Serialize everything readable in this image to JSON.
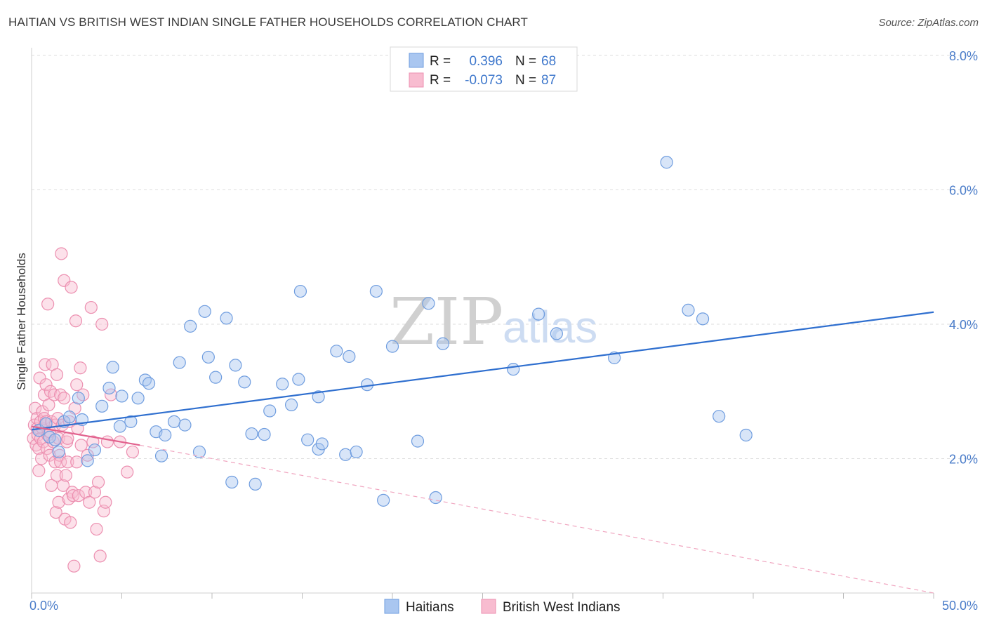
{
  "title": "HAITIAN VS BRITISH WEST INDIAN SINGLE FATHER HOUSEHOLDS CORRELATION CHART",
  "source": "Source: ZipAtlas.com",
  "watermark": {
    "zip": "ZIP",
    "atlas": "atlas"
  },
  "legend": {
    "r_label": "R =",
    "n_label": "N =",
    "rows": [
      {
        "r": "0.396",
        "n": "68",
        "color": "#a9c6f0",
        "stroke": "#6f9ddf"
      },
      {
        "r": "-0.073",
        "n": "87",
        "color": "#f8bcd0",
        "stroke": "#ec8fb0"
      }
    ]
  },
  "bottom_legend": [
    "Haitians",
    "British West Indians"
  ],
  "chart_data": {
    "type": "scatter",
    "ylabel": "Single Father Households",
    "xlim": [
      0,
      50
    ],
    "ylim": [
      0,
      8
    ],
    "x_tick_labels": [
      "0.0%",
      "50.0%"
    ],
    "y_ticks": [
      2,
      4,
      6,
      8
    ],
    "y_tick_labels": [
      "2.0%",
      "4.0%",
      "6.0%",
      "8.0%"
    ],
    "grid": true,
    "series": [
      {
        "name": "Haitians",
        "color": "#a9c6f0",
        "stroke": "#6f9ddf",
        "trend": {
          "x": [
            0,
            50
          ],
          "y": [
            2.43,
            4.18
          ],
          "color": "#2f6fcf"
        },
        "points": [
          [
            0.4,
            2.42
          ],
          [
            1.0,
            2.32
          ],
          [
            1.3,
            2.28
          ],
          [
            1.8,
            2.55
          ],
          [
            2.1,
            2.62
          ],
          [
            2.6,
            2.9
          ],
          [
            2.8,
            2.58
          ],
          [
            3.1,
            1.97
          ],
          [
            3.5,
            2.13
          ],
          [
            3.9,
            2.78
          ],
          [
            4.3,
            3.05
          ],
          [
            4.5,
            3.36
          ],
          [
            4.9,
            2.48
          ],
          [
            5.0,
            2.93
          ],
          [
            5.5,
            2.55
          ],
          [
            5.9,
            2.9
          ],
          [
            6.3,
            3.17
          ],
          [
            6.5,
            3.12
          ],
          [
            6.9,
            2.4
          ],
          [
            7.2,
            2.04
          ],
          [
            7.4,
            2.35
          ],
          [
            7.9,
            2.55
          ],
          [
            8.2,
            3.43
          ],
          [
            8.5,
            2.5
          ],
          [
            8.8,
            3.97
          ],
          [
            9.3,
            2.1
          ],
          [
            9.6,
            4.19
          ],
          [
            9.8,
            3.51
          ],
          [
            10.2,
            3.21
          ],
          [
            10.8,
            4.09
          ],
          [
            11.1,
            1.65
          ],
          [
            11.3,
            3.39
          ],
          [
            11.8,
            3.14
          ],
          [
            12.2,
            2.37
          ],
          [
            12.4,
            1.62
          ],
          [
            12.9,
            2.36
          ],
          [
            13.2,
            2.71
          ],
          [
            13.9,
            3.11
          ],
          [
            14.4,
            2.8
          ],
          [
            14.8,
            3.18
          ],
          [
            14.9,
            4.49
          ],
          [
            15.3,
            2.28
          ],
          [
            15.9,
            2.92
          ],
          [
            15.9,
            2.14
          ],
          [
            16.1,
            2.22
          ],
          [
            16.9,
            3.6
          ],
          [
            17.4,
            2.06
          ],
          [
            17.6,
            3.52
          ],
          [
            18.0,
            2.1
          ],
          [
            18.6,
            3.1
          ],
          [
            19.1,
            4.49
          ],
          [
            19.5,
            1.38
          ],
          [
            20.0,
            3.67
          ],
          [
            21.4,
            2.26
          ],
          [
            22.0,
            4.31
          ],
          [
            22.4,
            1.42
          ],
          [
            22.8,
            3.71
          ],
          [
            26.7,
            3.33
          ],
          [
            28.1,
            4.15
          ],
          [
            29.1,
            3.86
          ],
          [
            32.3,
            3.5
          ],
          [
            35.2,
            6.41
          ],
          [
            36.4,
            4.21
          ],
          [
            37.2,
            4.08
          ],
          [
            38.1,
            2.63
          ],
          [
            39.6,
            2.35
          ],
          [
            1.5,
            2.1
          ],
          [
            0.8,
            2.52
          ]
        ]
      },
      {
        "name": "British West Indians",
        "color": "#f8bcd0",
        "stroke": "#ec8fb0",
        "trend": {
          "x": [
            0,
            6.0
          ],
          "y": [
            2.48,
            2.2
          ],
          "color": "#e2628e"
        },
        "trend_ext": {
          "x": [
            6.0,
            50
          ],
          "y": [
            2.2,
            0.0
          ],
          "color": "#f0a6c0"
        },
        "points": [
          [
            0.1,
            2.3
          ],
          [
            0.15,
            2.5
          ],
          [
            0.2,
            2.75
          ],
          [
            0.25,
            2.2
          ],
          [
            0.3,
            2.45
          ],
          [
            0.3,
            2.6
          ],
          [
            0.35,
            2.35
          ],
          [
            0.4,
            2.15
          ],
          [
            0.4,
            1.82
          ],
          [
            0.45,
            3.2
          ],
          [
            0.5,
            2.55
          ],
          [
            0.5,
            2.3
          ],
          [
            0.55,
            2.0
          ],
          [
            0.6,
            2.7
          ],
          [
            0.6,
            2.45
          ],
          [
            0.65,
            2.25
          ],
          [
            0.7,
            2.6
          ],
          [
            0.7,
            2.95
          ],
          [
            0.75,
            3.4
          ],
          [
            0.8,
            3.1
          ],
          [
            0.8,
            2.55
          ],
          [
            0.85,
            2.15
          ],
          [
            0.9,
            2.35
          ],
          [
            0.9,
            4.3
          ],
          [
            0.95,
            2.8
          ],
          [
            1.0,
            2.05
          ],
          [
            1.0,
            2.4
          ],
          [
            1.05,
            3.0
          ],
          [
            1.1,
            1.6
          ],
          [
            1.1,
            2.55
          ],
          [
            1.15,
            3.4
          ],
          [
            1.2,
            2.25
          ],
          [
            1.25,
            2.95
          ],
          [
            1.3,
            1.95
          ],
          [
            1.3,
            2.5
          ],
          [
            1.35,
            1.2
          ],
          [
            1.4,
            3.25
          ],
          [
            1.4,
            1.75
          ],
          [
            1.45,
            2.6
          ],
          [
            1.5,
            1.35
          ],
          [
            1.5,
            2.3
          ],
          [
            1.55,
            2.05
          ],
          [
            1.6,
            1.95
          ],
          [
            1.6,
            2.95
          ],
          [
            1.65,
            5.05
          ],
          [
            1.7,
            2.5
          ],
          [
            1.75,
            1.6
          ],
          [
            1.8,
            2.9
          ],
          [
            1.8,
            4.65
          ],
          [
            1.85,
            1.1
          ],
          [
            1.9,
            1.75
          ],
          [
            1.95,
            2.25
          ],
          [
            2.0,
            1.95
          ],
          [
            2.0,
            2.3
          ],
          [
            2.05,
            1.4
          ],
          [
            2.1,
            2.55
          ],
          [
            2.15,
            1.05
          ],
          [
            2.2,
            4.55
          ],
          [
            2.25,
            1.5
          ],
          [
            2.3,
            1.45
          ],
          [
            2.35,
            0.4
          ],
          [
            2.4,
            2.75
          ],
          [
            2.45,
            4.05
          ],
          [
            2.5,
            3.1
          ],
          [
            2.5,
            1.95
          ],
          [
            2.55,
            2.45
          ],
          [
            2.6,
            1.45
          ],
          [
            2.7,
            3.35
          ],
          [
            2.75,
            2.2
          ],
          [
            2.85,
            2.95
          ],
          [
            3.0,
            1.5
          ],
          [
            3.1,
            2.05
          ],
          [
            3.2,
            1.35
          ],
          [
            3.3,
            4.25
          ],
          [
            3.4,
            2.25
          ],
          [
            3.5,
            1.5
          ],
          [
            3.6,
            0.95
          ],
          [
            3.7,
            1.65
          ],
          [
            3.8,
            0.55
          ],
          [
            3.9,
            4.0
          ],
          [
            4.0,
            1.22
          ],
          [
            4.1,
            1.35
          ],
          [
            4.2,
            2.25
          ],
          [
            4.4,
            2.95
          ],
          [
            4.9,
            2.25
          ],
          [
            5.3,
            1.8
          ],
          [
            5.6,
            2.1
          ]
        ]
      }
    ]
  }
}
